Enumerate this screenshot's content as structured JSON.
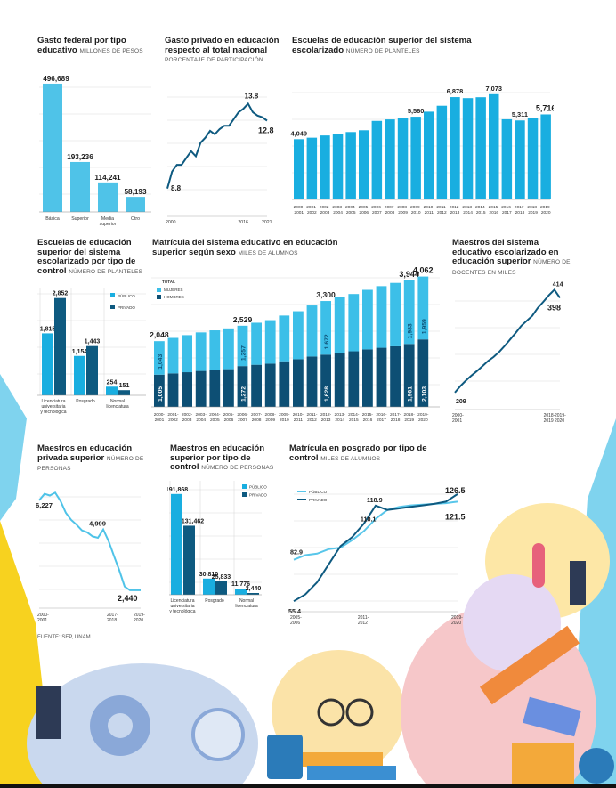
{
  "source": "FUENTE: SEP, UNAM.",
  "charts": {
    "gasto": {
      "title": "Gasto federal por tipo educativo",
      "unit": "MILLONES DE PESOS"
    },
    "privado": {
      "title": "Gasto privado en educación respecto al total nacional",
      "unit": "PORCENTAJE DE PARTICIPACIÓN"
    },
    "escuelas": {
      "title": "Escuelas de educación superior del sistema escolarizado",
      "unit": "NÚMERO DE PLANTELES"
    },
    "control": {
      "title": "Escuelas de educación superior del sistema escolarizado por tipo de control",
      "unit": "NÚMERO DE PLANTELES"
    },
    "matricula": {
      "title": "Matrícula del sistema educativo en educación superior según sexo",
      "unit": "MILES DE ALUMNOS"
    },
    "maestros": {
      "title": "Maestros del sistema educativo escolarizado en educación superior",
      "unit": "NÚMERO DE DOCENTES EN MILES"
    },
    "mpriv": {
      "title": "Maestros en educación privada superior",
      "unit": "NÚMERO DE PERSONAS"
    },
    "mcontrol": {
      "title": "Maestros en educación superior por tipo de control",
      "unit": "NÚMERO DE PERSONAS"
    },
    "posgrado": {
      "title": "Matrícula en posgrado por tipo de control",
      "unit": "MILES DE ALUMNOS"
    }
  },
  "chart_data": [
    {
      "id": "gasto",
      "type": "bar",
      "categories": [
        "Básica",
        "Superior",
        "Media superior",
        "Otro"
      ],
      "values": [
        496689,
        193236,
        114241,
        58193
      ],
      "labels": [
        "496,689",
        "193,236",
        "114,241",
        "58,193"
      ],
      "color": "#4fc3e8"
    },
    {
      "id": "privado",
      "type": "line",
      "x": [
        2000,
        2001,
        2002,
        2003,
        2004,
        2005,
        2006,
        2007,
        2008,
        2009,
        2010,
        2011,
        2012,
        2013,
        2014,
        2015,
        2016,
        2017,
        2018,
        2019,
        2020,
        2021
      ],
      "y": [
        8.8,
        9.8,
        10.2,
        10.2,
        10.6,
        11.0,
        10.7,
        11.5,
        11.8,
        12.2,
        12.0,
        12.3,
        12.5,
        12.5,
        12.9,
        13.3,
        13.5,
        13.8,
        13.3,
        13.1,
        13.0,
        12.8
      ],
      "x_tick_labels": [
        "2000",
        "2016",
        "2021"
      ],
      "y_labels": [
        "8.8",
        "13.8",
        "12.8"
      ],
      "color": "#0e5a80"
    },
    {
      "id": "escuelas",
      "type": "bar",
      "categories": [
        "2000-2001",
        "2001-2002",
        "2002-2003",
        "2003-2004",
        "2004-2005",
        "2005-2006",
        "2006-2007",
        "2007-2008",
        "2008-2009",
        "2009-2010",
        "2010-2011",
        "2011-2012",
        "2012-2013",
        "2013-2014",
        "2014-2015",
        "2015-2016",
        "2016-2017",
        "2017-2018",
        "2018-2019",
        "2019-2020"
      ],
      "values": [
        4049,
        4150,
        4300,
        4420,
        4530,
        4650,
        5280,
        5380,
        5480,
        5560,
        5900,
        6300,
        6878,
        6810,
        6870,
        7073,
        5390,
        5311,
        5450,
        5716
      ],
      "labels": [
        "4,049",
        "",
        "",
        "",
        "",
        "",
        "",
        "",
        "",
        "5,560",
        "",
        "",
        "6,878",
        "",
        "",
        "7,073",
        "",
        "5,311",
        "",
        "5,716"
      ],
      "color": "#19aee0"
    },
    {
      "id": "control",
      "type": "bar",
      "categories": [
        "Licenciatura universitaria y tecnológica",
        "Posgrado",
        "Normal licenciatura"
      ],
      "series": [
        {
          "name": "PÚBLICO",
          "values": [
            1815,
            1154,
            254
          ],
          "labels": [
            "1,815",
            "1,154",
            "254"
          ],
          "color": "#19aee0"
        },
        {
          "name": "PRIVADO",
          "values": [
            2852,
            1443,
            151
          ],
          "labels": [
            "2,852",
            "1,443",
            "151"
          ],
          "color": "#0e5a80"
        }
      ],
      "ylim": [
        0,
        3000
      ]
    },
    {
      "id": "matricula",
      "type": "bar",
      "stacked": true,
      "categories": [
        "2000-2001",
        "2001-2002",
        "2002-2003",
        "2003-2004",
        "2004-2005",
        "2005-2006",
        "2006-2007",
        "2007-2008",
        "2008-2009",
        "2009-2010",
        "2010-2011",
        "2011-2012",
        "2012-2013",
        "2013-2014",
        "2014-2015",
        "2015-2016",
        "2016-2017",
        "2017-2018",
        "2018-2019",
        "2019-2020"
      ],
      "total_label": "TOTAL",
      "totals": [
        2048,
        2150,
        2236,
        2321,
        2385,
        2446,
        2529,
        2623,
        2703,
        2847,
        2981,
        3161,
        3300,
        3419,
        3518,
        3648,
        3763,
        3864,
        3944,
        4062
      ],
      "total_labels": [
        "2,048",
        "",
        "",
        "",
        "",
        "",
        "2,529",
        "",
        "",
        "",
        "",
        "",
        "3,300",
        "",
        "",
        "",
        "",
        "",
        "3,944",
        "4,062"
      ],
      "series": [
        {
          "name": "MUJERES",
          "values": [
            1043,
            1105,
            1155,
            1200,
            1235,
            1270,
            1257,
            1310,
            1355,
            1425,
            1495,
            1590,
            1672,
            1735,
            1785,
            1855,
            1920,
            1976,
            1983,
            1959
          ],
          "labels": [
            "1,043",
            "",
            "",
            "",
            "",
            "",
            "1,257",
            "",
            "",
            "",
            "",
            "",
            "1,672",
            "",
            "",
            "",
            "",
            "",
            "1,983",
            "1,959"
          ],
          "color": "#3cbfe8"
        },
        {
          "name": "HOMBRES",
          "values": [
            1005,
            1045,
            1081,
            1121,
            1150,
            1176,
            1272,
            1313,
            1348,
            1422,
            1486,
            1571,
            1628,
            1684,
            1733,
            1793,
            1843,
            1888,
            1961,
            2103
          ],
          "labels": [
            "1,005",
            "",
            "",
            "",
            "",
            "",
            "1,272",
            "",
            "",
            "",
            "",
            "",
            "1,628",
            "",
            "",
            "",
            "",
            "",
            "1,961",
            "2,103"
          ],
          "color": "#0d4f74"
        }
      ],
      "ylim": [
        0,
        4300
      ]
    },
    {
      "id": "maestros",
      "type": "line",
      "x": [
        "2000-2001",
        "2001-2002",
        "2002-2003",
        "2003-2004",
        "2004-2005",
        "2005-2006",
        "2006-2007",
        "2007-2008",
        "2008-2009",
        "2009-2010",
        "2010-2011",
        "2011-2012",
        "2012-2013",
        "2013-2014",
        "2014-2015",
        "2015-2016",
        "2016-2017",
        "2017-2018",
        "2018-2019",
        "2019-2020"
      ],
      "y": [
        209,
        222,
        233,
        243,
        252,
        262,
        272,
        280,
        290,
        302,
        315,
        328,
        342,
        352,
        362,
        378,
        390,
        403,
        414,
        398
      ],
      "x_tick_labels": [
        "2000-2001",
        "2018-2019",
        "2019-2020"
      ],
      "y_labels": [
        "209",
        "414",
        "398"
      ],
      "color": "#0e5a80"
    },
    {
      "id": "mpriv",
      "type": "line",
      "x": [
        "2000-2001",
        "2001-2002",
        "2002-2003",
        "2003-2004",
        "2004-2005",
        "2005-2006",
        "2006-2007",
        "2007-2008",
        "2008-2009",
        "2009-2010",
        "2010-2011",
        "2011-2012",
        "2012-2013",
        "2013-2014",
        "2014-2015",
        "2015-2016",
        "2016-2017",
        "2017-2018",
        "2018-2019",
        "2019-2020"
      ],
      "y": [
        6227,
        6500,
        6430,
        6550,
        6200,
        5700,
        5400,
        5200,
        4960,
        4880,
        4710,
        4650,
        4999,
        4510,
        3890,
        3280,
        2600,
        2440,
        2440,
        2440
      ],
      "x_tick_labels": [
        "2000-2001",
        "2017-2018",
        "2019-2020"
      ],
      "y_labels": [
        "6,227",
        "4,999",
        "2,440"
      ],
      "color": "#4fc3e8"
    },
    {
      "id": "mcontrol",
      "type": "bar",
      "categories": [
        "Licenciatura universitaria y tecnológica",
        "Posgrado",
        "Normal licenciatura"
      ],
      "series": [
        {
          "name": "PÚBLICO",
          "values": [
            191868,
            30810,
            11776
          ],
          "labels": [
            "191,868",
            "30,810",
            "11,776"
          ],
          "color": "#19aee0"
        },
        {
          "name": "PRIVADO",
          "values": [
            131462,
            25833,
            2440
          ],
          "labels": [
            "131,462",
            "25,833",
            "2,440"
          ],
          "color": "#0e5a80"
        }
      ],
      "ylim": [
        0,
        200000
      ]
    },
    {
      "id": "posgrado",
      "type": "line",
      "x": [
        "2005-2006",
        "2006-2007",
        "2007-2008",
        "2008-2009",
        "2009-2010",
        "2010-2011",
        "2011-2012",
        "2012-2013",
        "2013-2014",
        "2014-2015",
        "2015-2016",
        "2016-2017",
        "2017-2018",
        "2018-2019",
        "2019-2020"
      ],
      "x_tick_labels": [
        "2005-2006",
        "2011-2012",
        "2019-2020"
      ],
      "series": [
        {
          "name": "PÚBLICO",
          "y": [
            82.9,
            86,
            87,
            90,
            91,
            96,
            102,
            110.1,
            116,
            118,
            119,
            119.5,
            120,
            120.5,
            121.5
          ],
          "labels": [
            "82.9",
            "110.1",
            "121.5"
          ],
          "color": "#58c6ea"
        },
        {
          "name": "PRIVADO",
          "y": [
            55.4,
            60,
            68,
            80,
            92,
            98,
            107,
            118.9,
            116,
            117,
            118,
            119,
            120,
            121.5,
            126.5
          ],
          "labels": [
            "55.4",
            "118.9",
            "126.5"
          ],
          "color": "#0e5a80"
        }
      ]
    }
  ]
}
